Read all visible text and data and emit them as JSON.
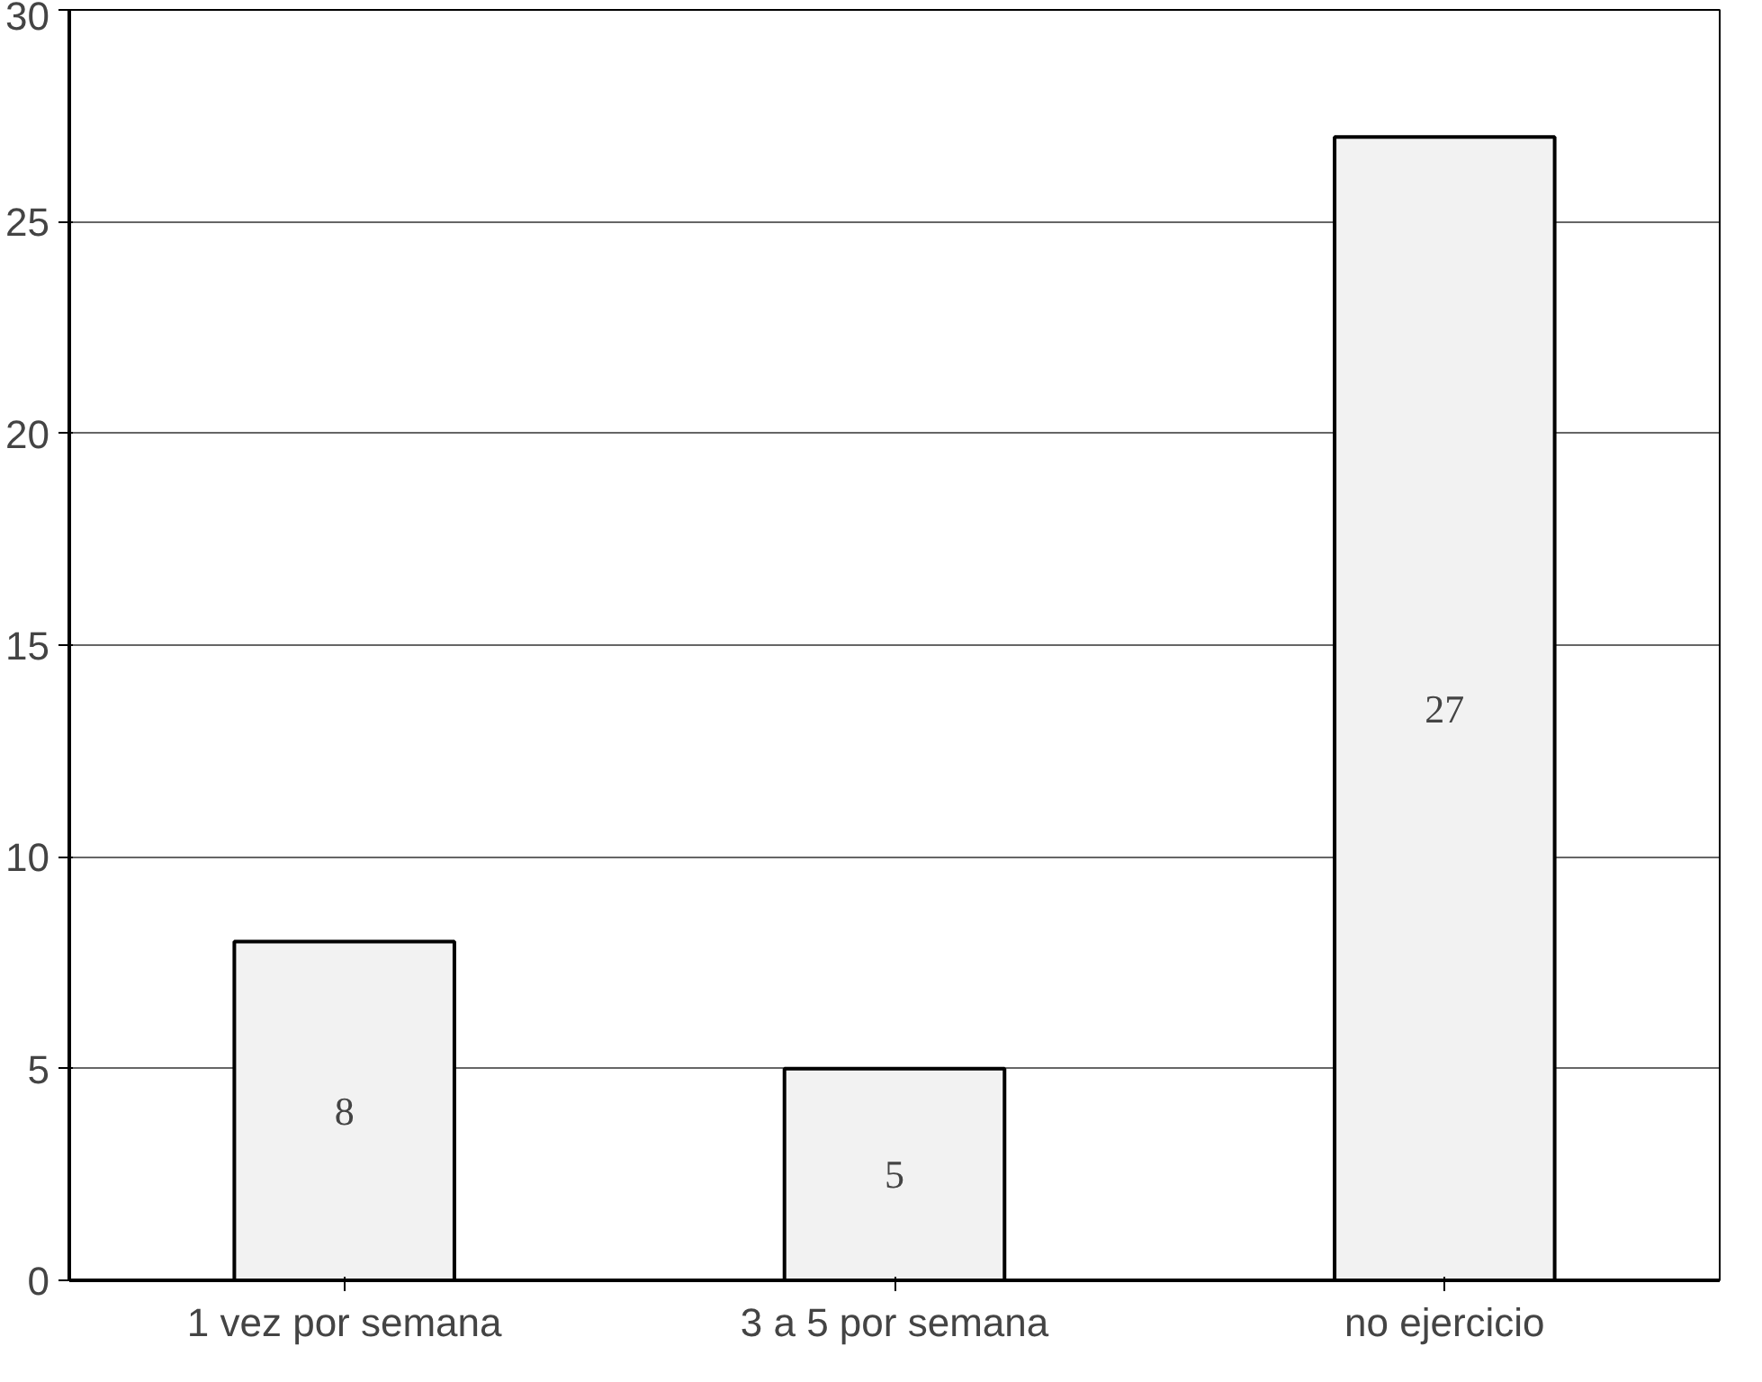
{
  "chart_data": {
    "type": "bar",
    "categories": [
      "1 vez por semana",
      "3 a 5 por semana",
      "no ejercicio"
    ],
    "values": [
      8,
      5,
      27
    ],
    "color": "#f2f2f2",
    "ylim": [
      0,
      30
    ],
    "yticks": [
      0,
      5,
      10,
      15,
      20,
      25,
      30
    ],
    "grid": "y",
    "data_labels": true
  }
}
